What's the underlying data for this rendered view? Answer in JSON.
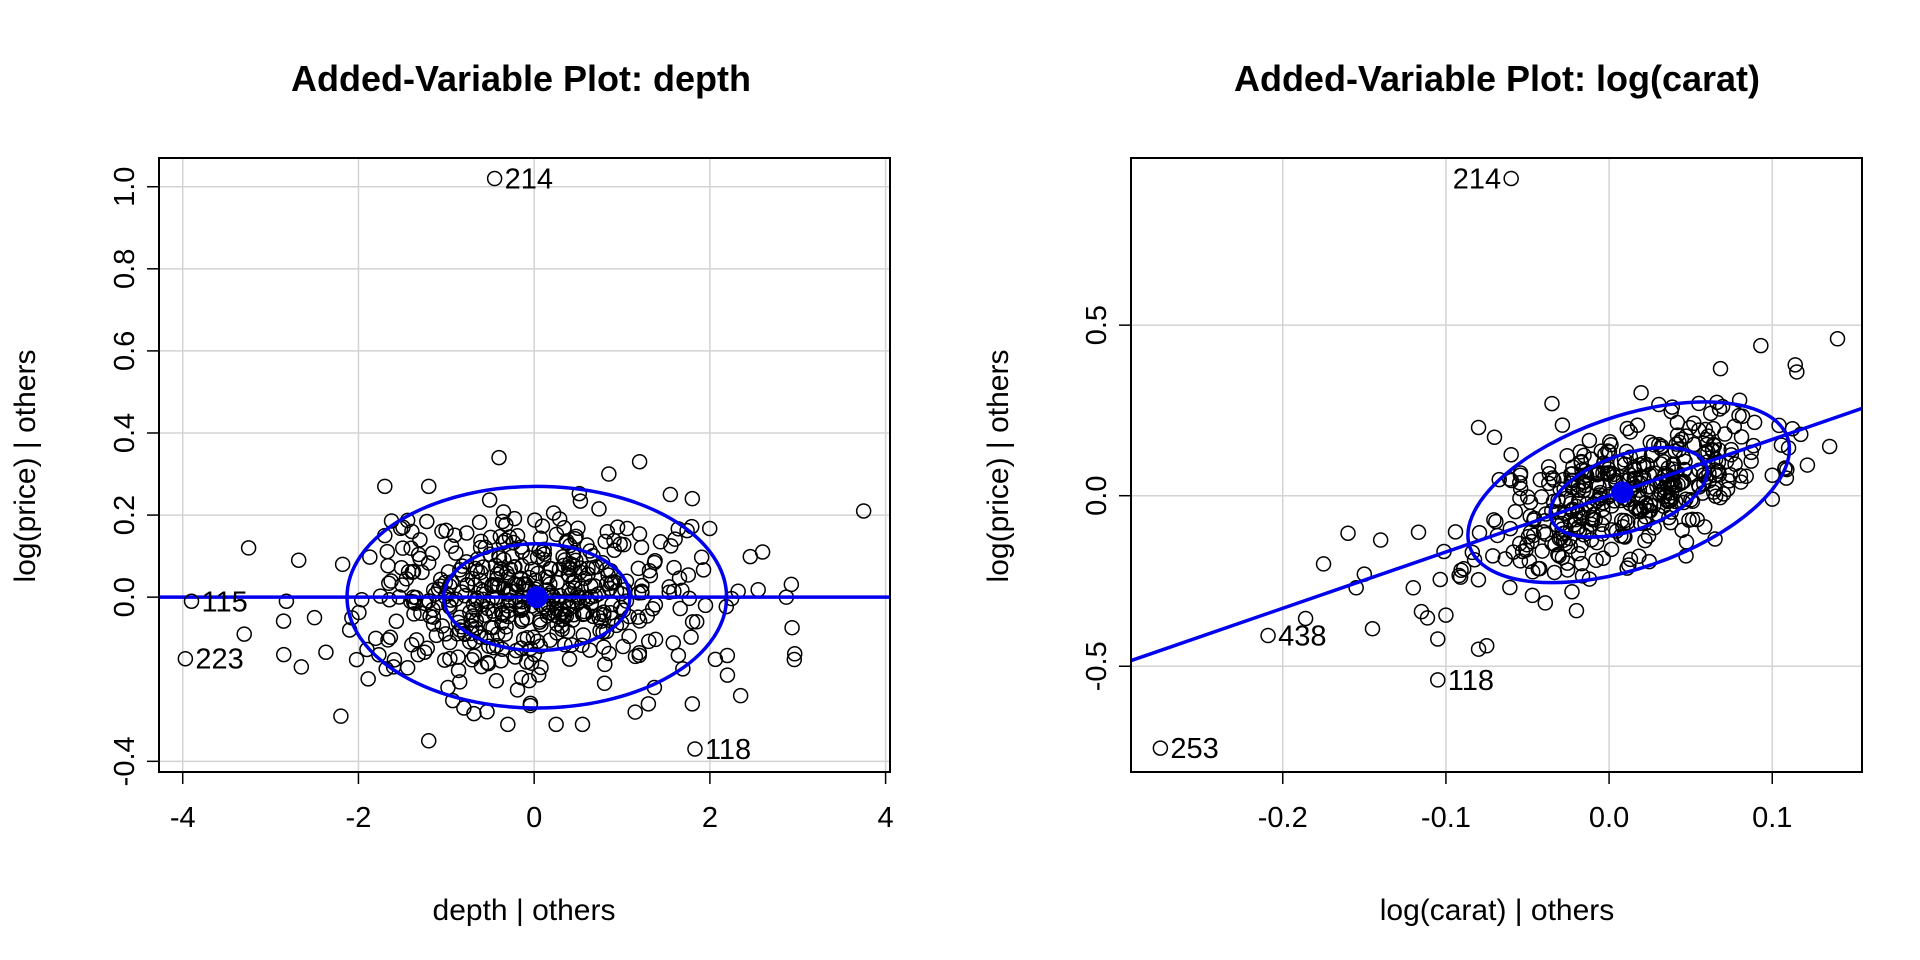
{
  "colors": {
    "fit": "#0000ee",
    "grid": "#d3d3d3",
    "frame": "#000000",
    "points": "#000000",
    "background": "#ffffff"
  },
  "chart_data": [
    {
      "type": "scatter",
      "title": "Added-Variable Plot: depth",
      "xlabel": "depth | others",
      "ylabel": "log(price)  | others",
      "xlim": [
        -4.27,
        4.05
      ],
      "ylim": [
        -0.426,
        1.07
      ],
      "x_ticks": [
        -4,
        -2,
        0,
        2,
        4
      ],
      "x_tick_labels": [
        "-4",
        "-2",
        "0",
        "2",
        "4"
      ],
      "y_ticks": [
        -0.4,
        0.0,
        0.2,
        0.4,
        0.6,
        0.8,
        1.0
      ],
      "y_tick_labels": [
        "-0.4",
        "0.0",
        "0.2",
        "0.4",
        "0.6",
        "0.8",
        "1.0"
      ],
      "grid": true,
      "fit_line": {
        "intercept": 0.0,
        "slope": 0.0
      },
      "center": [
        0.03,
        0.0
      ],
      "ellipses": [
        {
          "cx": 0.03,
          "cy": 0.0,
          "rx": 1.06,
          "ry": 0.13,
          "angle": 0
        },
        {
          "cx": 0.03,
          "cy": 0.0,
          "rx": 2.16,
          "ry": 0.27,
          "angle": 0
        }
      ],
      "labeled_points": [
        {
          "label": "214",
          "x": -0.45,
          "y": 1.02
        },
        {
          "label": "115",
          "x": -3.9,
          "y": -0.01
        },
        {
          "label": "223",
          "x": -3.97,
          "y": -0.15
        },
        {
          "label": "118",
          "x": 1.83,
          "y": -0.37
        }
      ],
      "extra_points": [
        [
          3.75,
          0.21
        ],
        [
          2.87,
          0.0
        ],
        [
          2.6,
          0.11
        ],
        [
          2.35,
          -0.24
        ],
        [
          2.2,
          -0.19
        ],
        [
          -3.25,
          0.12
        ],
        [
          -3.3,
          -0.09
        ],
        [
          -2.85,
          -0.14
        ],
        [
          -2.65,
          -0.17
        ],
        [
          -2.68,
          0.09
        ],
        [
          -2.82,
          -0.01
        ],
        [
          -2.5,
          -0.05
        ],
        [
          -2.18,
          0.08
        ],
        [
          -2.2,
          -0.29
        ],
        [
          -2.1,
          -0.08
        ],
        [
          -1.7,
          0.27
        ],
        [
          -1.7,
          0.15
        ],
        [
          -1.6,
          -0.17
        ],
        [
          -1.2,
          -0.35
        ],
        [
          -1.2,
          0.27
        ],
        [
          -0.8,
          -0.27
        ],
        [
          -0.4,
          0.34
        ],
        [
          -0.3,
          -0.31
        ],
        [
          0.25,
          -0.31
        ],
        [
          0.55,
          -0.31
        ],
        [
          0.85,
          0.3
        ],
        [
          1.2,
          0.33
        ],
        [
          1.15,
          -0.28
        ],
        [
          1.3,
          -0.26
        ],
        [
          1.55,
          0.25
        ],
        [
          1.8,
          0.24
        ],
        [
          1.8,
          -0.26
        ],
        [
          1.95,
          -0.02
        ],
        [
          1.85,
          -0.06
        ]
      ],
      "cloud": {
        "n": 480,
        "x_mean": 0.0,
        "x_sd": 0.95,
        "y_sd": 0.1,
        "slope": 0.0,
        "seed": 7
      }
    },
    {
      "type": "scatter",
      "title": "Added-Variable Plot: log(carat)",
      "xlabel": "log(carat) | others",
      "ylabel": "log(price)  | others",
      "xlim": [
        -0.293,
        0.155
      ],
      "ylim": [
        -0.81,
        0.99
      ],
      "x_ticks": [
        -0.2,
        -0.1,
        0.0,
        0.1
      ],
      "x_tick_labels": [
        "-0.2",
        "-0.1",
        "0.0",
        "0.1"
      ],
      "y_ticks": [
        -0.5,
        0.0,
        0.5
      ],
      "y_tick_labels": [
        "-0.5",
        "0.0",
        "0.5"
      ],
      "grid": true,
      "fit_line": {
        "intercept": 0.0,
        "slope": 1.65
      },
      "center": [
        0.008,
        0.01
      ],
      "ellipses": [
        {
          "cx": 0.012,
          "cy": 0.01,
          "rx": 0.068,
          "ry": 0.071,
          "angle": 0.73,
          "scale_x": 1,
          "scale_y": 1,
          "in_pixels": true,
          "px_rx": 82,
          "px_ry": 38
        },
        {
          "cx": 0.012,
          "cy": 0.01,
          "rx": 0.136,
          "ry": 0.142,
          "angle": 0.73,
          "in_pixels": true,
          "px_rx": 168,
          "px_ry": 76
        }
      ],
      "labeled_points": [
        {
          "label": "214",
          "x": -0.06,
          "y": 0.93
        },
        {
          "label": "438",
          "x": -0.209,
          "y": -0.41
        },
        {
          "label": "118",
          "x": -0.105,
          "y": -0.54
        },
        {
          "label": "253",
          "x": -0.275,
          "y": -0.74
        }
      ],
      "extra_points": [
        [
          0.14,
          0.46
        ],
        [
          0.093,
          0.44
        ],
        [
          0.11,
          0.14
        ],
        [
          0.1,
          0.06
        ],
        [
          0.1,
          -0.01
        ],
        [
          0.08,
          0.28
        ],
        [
          -0.186,
          -0.36
        ],
        [
          -0.175,
          -0.2
        ],
        [
          -0.16,
          -0.11
        ],
        [
          -0.155,
          -0.27
        ],
        [
          -0.15,
          -0.23
        ],
        [
          -0.145,
          -0.39
        ],
        [
          -0.14,
          -0.13
        ],
        [
          -0.12,
          -0.27
        ],
        [
          -0.115,
          -0.34
        ],
        [
          -0.105,
          -0.42
        ],
        [
          -0.1,
          -0.35
        ],
        [
          -0.08,
          -0.45
        ],
        [
          -0.075,
          -0.44
        ],
        [
          -0.035,
          0.27
        ],
        [
          -0.06,
          0.12
        ],
        [
          -0.08,
          0.2
        ]
      ],
      "cloud": {
        "n": 420,
        "x_mean": 0.01,
        "x_sd": 0.045,
        "y_sd": 0.1,
        "slope": 1.65,
        "seed": 11
      }
    }
  ]
}
